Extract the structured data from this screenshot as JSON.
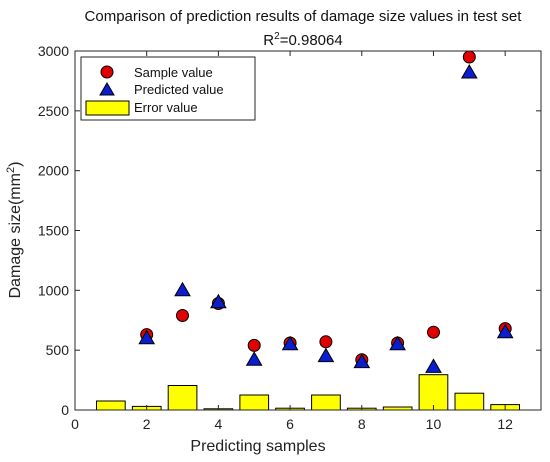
{
  "chart_data": {
    "type": "scatter",
    "title": "Comparison of prediction results of damage size values in test set",
    "subtitle_base": "R",
    "subtitle_sup": "2",
    "subtitle_rest": "=0.98064",
    "xlabel": "Predicting samples",
    "ylabel_base": "Damage size(mm",
    "ylabel_sup": "2",
    "ylabel_end": ")",
    "xlim": [
      0,
      13
    ],
    "ylim": [
      0,
      3000
    ],
    "xticks": [
      "0",
      "2",
      "4",
      "6",
      "8",
      "10",
      "12"
    ],
    "yticks": [
      "0",
      "500",
      "1000",
      "1500",
      "2000",
      "2500",
      "3000"
    ],
    "x": [
      1,
      2,
      3,
      4,
      5,
      6,
      7,
      8,
      9,
      10,
      11,
      12
    ],
    "series": [
      {
        "name": "Sample value",
        "marker": "circle",
        "color": "#e00000",
        "values": [
          null,
          630,
          790,
          890,
          540,
          560,
          570,
          420,
          560,
          650,
          2950,
          680
        ]
      },
      {
        "name": "Predicted value",
        "marker": "triangle",
        "color": "#0a1ecf",
        "values": [
          null,
          600,
          1000,
          900,
          420,
          550,
          450,
          400,
          550,
          360,
          2820,
          650
        ]
      },
      {
        "name": "Error value",
        "marker": "bar",
        "color": "#ffff00",
        "values": [
          75,
          30,
          205,
          10,
          125,
          15,
          125,
          15,
          25,
          295,
          140,
          45
        ]
      }
    ],
    "legend_position": "top-left",
    "grid": false
  }
}
